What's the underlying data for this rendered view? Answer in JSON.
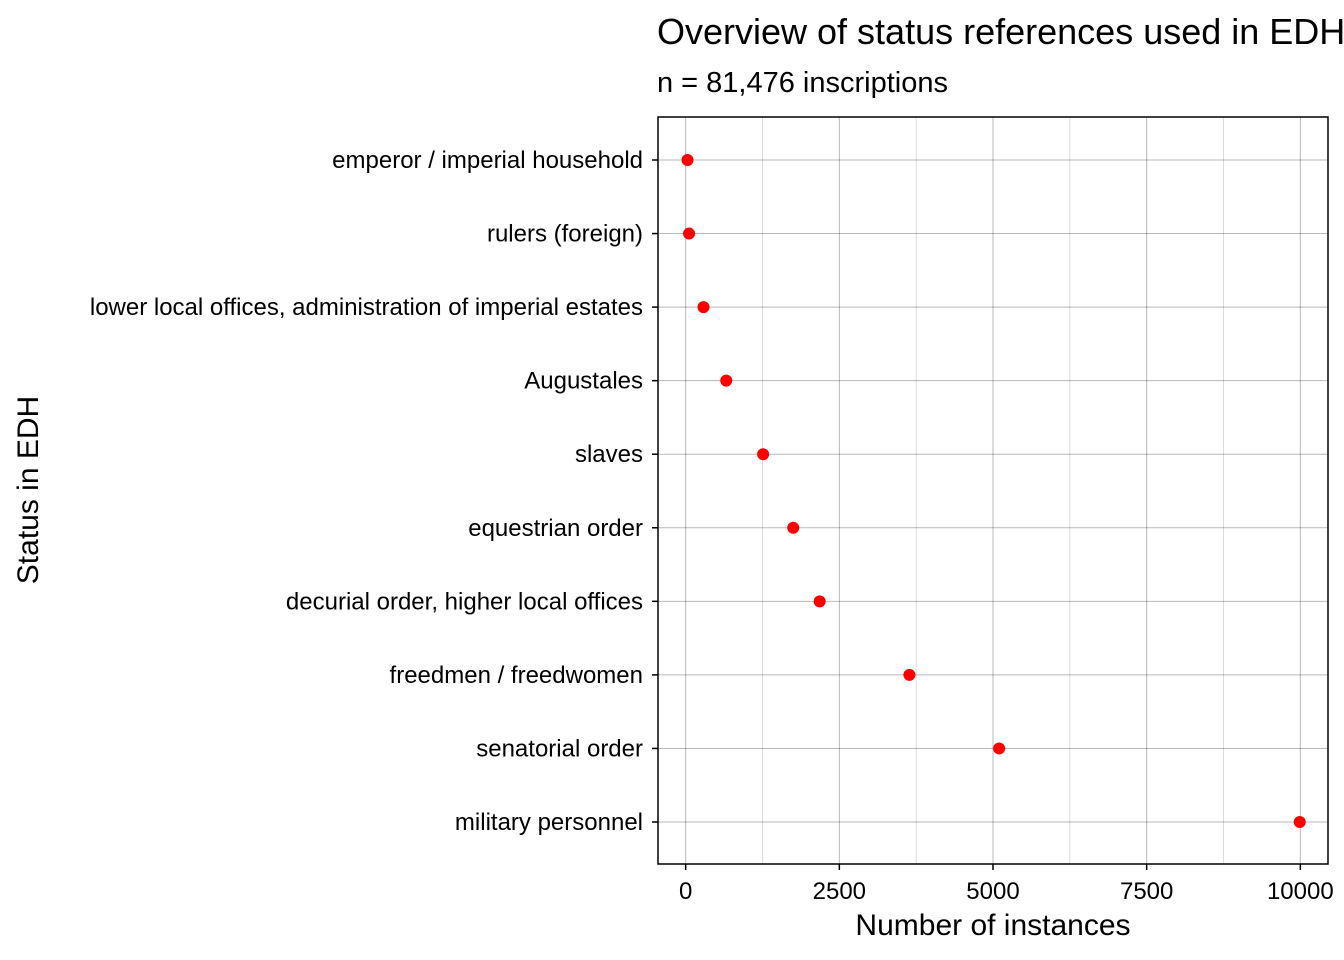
{
  "chart_data": {
    "type": "scatter",
    "title": "Overview of status references used in EDH",
    "subtitle": "n = 81,476 inscriptions",
    "xlabel": "Number of instances",
    "ylabel": "Status in EDH",
    "xlim": [
      -450,
      10450
    ],
    "x_ticks": [
      0,
      2500,
      5000,
      7500,
      10000
    ],
    "x_tick_labels": [
      "0",
      "2500",
      "5000",
      "7500",
      "10000"
    ],
    "grid": true,
    "point_color": "#ff0000",
    "categories": [
      "emperor / imperial household",
      "rulers (foreign)",
      "lower local offices, administration of imperial estates",
      "Augustales",
      "slaves",
      "equestrian order",
      "decurial order, higher local offices",
      "freedmen / freedwomen",
      "senatorial order",
      "military personnel"
    ],
    "values": [
      30,
      55,
      290,
      660,
      1260,
      1750,
      2180,
      3640,
      5100,
      9990
    ]
  }
}
